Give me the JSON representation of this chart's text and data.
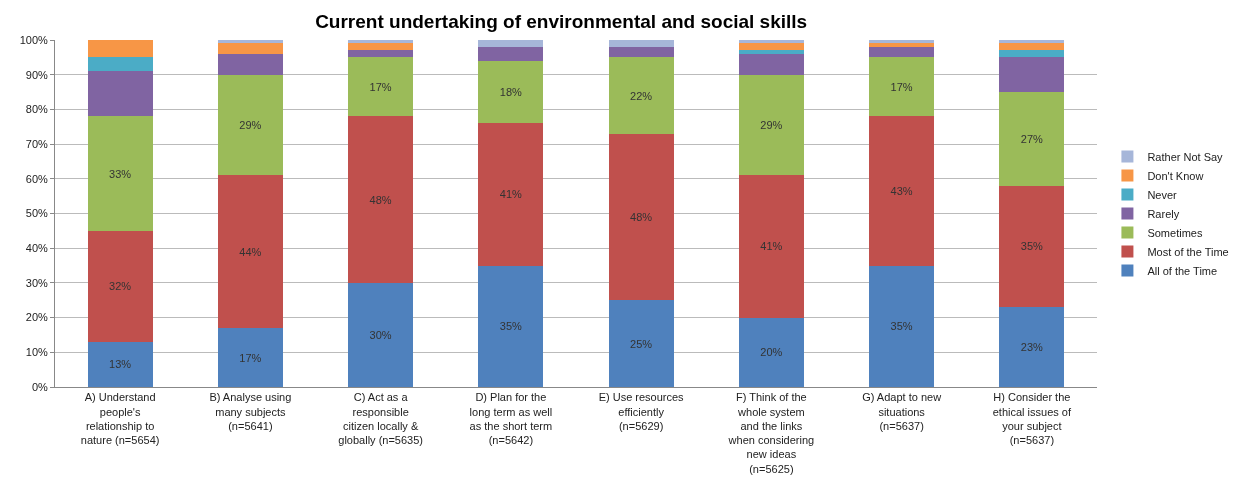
{
  "chart_data": {
    "type": "bar",
    "stacked": true,
    "title": "Current undertaking of environmental and social skills",
    "categories": [
      "A) Understand\npeople's\nrelationship to\nnature (n=5654)",
      "B) Analyse using\nmany subjects\n(n=5641)",
      "C) Act as a\nresponsible\ncitizen locally &\nglobally (n=5635)",
      "D) Plan for the\nlong term as well\nas the short term\n(n=5642)",
      "E) Use resources\nefficiently\n(n=5629)",
      "F) Think of the\nwhole system\nand the links\nwhen considering\nnew ideas\n(n=5625)",
      "G) Adapt to new\nsituations\n(n=5637)",
      "H) Consider the\nethical issues of\nyour subject\n(n=5637)"
    ],
    "series": [
      {
        "name": "All of the Time",
        "color": "#4f81bd",
        "values": [
          13,
          17,
          30,
          35,
          25,
          20,
          35,
          23
        ],
        "value_labels": [
          "13%",
          "17%",
          "30%",
          "35%",
          "25%",
          "20%",
          "35%",
          "23%"
        ]
      },
      {
        "name": "Most of the Time",
        "color": "#c0504d",
        "values": [
          32,
          44,
          48,
          41,
          48,
          41,
          43,
          35
        ],
        "value_labels": [
          "32%",
          "44%",
          "48%",
          "41%",
          "48%",
          "41%",
          "43%",
          "35%"
        ]
      },
      {
        "name": "Sometimes",
        "color": "#9bbb59",
        "values": [
          33,
          29,
          17,
          18,
          22,
          29,
          17,
          27
        ],
        "value_labels": [
          "33%",
          "29%",
          "17%",
          "18%",
          "22%",
          "29%",
          "17%",
          "27%"
        ]
      },
      {
        "name": "Rarely",
        "color": "#8064a2",
        "values": [
          13,
          6,
          2,
          4,
          3,
          6,
          3,
          10
        ]
      },
      {
        "name": "Never",
        "color": "#4bacc6",
        "values": [
          4,
          0,
          0,
          0,
          0,
          1,
          0,
          2
        ]
      },
      {
        "name": "Don't Know",
        "color": "#f79646",
        "values": [
          5,
          3,
          2,
          0,
          0,
          2,
          1,
          2
        ]
      },
      {
        "name": "Rather Not Say",
        "color": "#a6b6d9",
        "values": [
          0,
          1,
          1,
          2,
          2,
          1,
          1,
          1
        ]
      }
    ],
    "ylim": [
      0,
      100
    ],
    "yticks": [
      {
        "value": 0,
        "label": "0%"
      },
      {
        "value": 10,
        "label": "10%"
      },
      {
        "value": 20,
        "label": "20%"
      },
      {
        "value": 30,
        "label": "30%"
      },
      {
        "value": 40,
        "label": "40%"
      },
      {
        "value": 50,
        "label": "50%"
      },
      {
        "value": 60,
        "label": "60%"
      },
      {
        "value": 70,
        "label": "70%"
      },
      {
        "value": 80,
        "label": "80%"
      },
      {
        "value": 90,
        "label": "90%"
      },
      {
        "value": 100,
        "label": "100%"
      }
    ],
    "grid": "y",
    "legend": "right"
  }
}
